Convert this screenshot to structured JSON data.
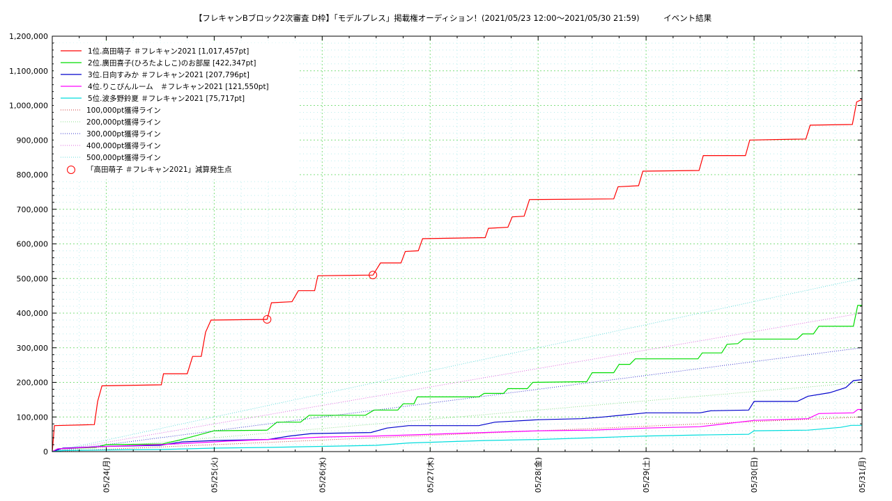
{
  "chart_data": {
    "type": "line",
    "title": "【フレキャンBブロック2次審査 D枠】「モデルプレス」掲載権オーディション！(2021/05/23 12:00〜2021/05/30 21:59)　　　イベント結果",
    "xlabel": "",
    "ylabel": "",
    "x_start_label": "2021/05/23 12:00",
    "x_end_label": "2021/05/31 00:00",
    "xlim_days": [
      0,
      7.5
    ],
    "ylim": [
      0,
      1200000
    ],
    "y_ticks": [
      0,
      100000,
      200000,
      300000,
      400000,
      500000,
      600000,
      700000,
      800000,
      900000,
      1000000,
      1100000,
      1200000
    ],
    "y_tick_labels": [
      "0",
      "100,000",
      "200,000",
      "300,000",
      "400,000",
      "500,000",
      "600,000",
      "700,000",
      "800,000",
      "900,000",
      "1,000,000",
      "1,100,000",
      "1,200,000"
    ],
    "x_ticks": [
      {
        "t": 0.5,
        "label": "05/24(月)"
      },
      {
        "t": 1.5,
        "label": "05/25(火)"
      },
      {
        "t": 2.5,
        "label": "05/26(水)"
      },
      {
        "t": 3.5,
        "label": "05/27(木)"
      },
      {
        "t": 4.5,
        "label": "05/28(金)"
      },
      {
        "t": 5.5,
        "label": "05/29(土)"
      },
      {
        "t": 6.5,
        "label": "05/30(日)"
      },
      {
        "t": 7.5,
        "label": "05/31(月)"
      }
    ],
    "grid": true,
    "legend_position": "top-left",
    "series": [
      {
        "name": "1位.高田萌子 ＃フレキャン2021 [1,017,457pt]",
        "color": "#ff0000",
        "points": [
          [
            0,
            0
          ],
          [
            0.02,
            75000
          ],
          [
            0.39,
            78000
          ],
          [
            0.42,
            145000
          ],
          [
            0.46,
            190000
          ],
          [
            1.01,
            193000
          ],
          [
            1.03,
            225000
          ],
          [
            1.25,
            225000
          ],
          [
            1.3,
            275000
          ],
          [
            1.38,
            275000
          ],
          [
            1.42,
            345000
          ],
          [
            1.47,
            380000
          ],
          [
            1.99,
            382000
          ],
          [
            2.03,
            430000
          ],
          [
            2.22,
            433000
          ],
          [
            2.28,
            465000
          ],
          [
            2.43,
            465000
          ],
          [
            2.46,
            508000
          ],
          [
            2.97,
            510000
          ],
          [
            3.04,
            545000
          ],
          [
            3.23,
            545000
          ],
          [
            3.27,
            578000
          ],
          [
            3.39,
            580000
          ],
          [
            3.43,
            615000
          ],
          [
            4.01,
            618000
          ],
          [
            4.04,
            645000
          ],
          [
            4.22,
            648000
          ],
          [
            4.26,
            678000
          ],
          [
            4.37,
            680000
          ],
          [
            4.42,
            728000
          ],
          [
            5.2,
            730000
          ],
          [
            5.24,
            765000
          ],
          [
            5.43,
            768000
          ],
          [
            5.47,
            810000
          ],
          [
            5.99,
            812000
          ],
          [
            6.03,
            855000
          ],
          [
            6.42,
            855000
          ],
          [
            6.46,
            900000
          ],
          [
            6.98,
            903000
          ],
          [
            7.02,
            943000
          ],
          [
            7.41,
            945000
          ],
          [
            7.45,
            1010000
          ],
          [
            7.5,
            1017457
          ]
        ]
      },
      {
        "name": "2位.廣田喜子(ひろたよしこ)のお部屋 [422,347pt]",
        "color": "#00dd00",
        "points": [
          [
            0,
            0
          ],
          [
            0.05,
            8000
          ],
          [
            0.4,
            12000
          ],
          [
            0.5,
            20000
          ],
          [
            1.02,
            22000
          ],
          [
            1.2,
            35000
          ],
          [
            1.5,
            60000
          ],
          [
            1.99,
            62000
          ],
          [
            2.08,
            85000
          ],
          [
            2.3,
            85000
          ],
          [
            2.38,
            105000
          ],
          [
            2.9,
            105000
          ],
          [
            2.98,
            120000
          ],
          [
            3.2,
            120000
          ],
          [
            3.25,
            138000
          ],
          [
            3.35,
            138000
          ],
          [
            3.38,
            158000
          ],
          [
            3.95,
            158000
          ],
          [
            4.0,
            168000
          ],
          [
            4.18,
            168000
          ],
          [
            4.22,
            182000
          ],
          [
            4.4,
            182000
          ],
          [
            4.45,
            200000
          ],
          [
            4.95,
            202000
          ],
          [
            5.0,
            228000
          ],
          [
            5.2,
            228000
          ],
          [
            5.25,
            252000
          ],
          [
            5.35,
            252000
          ],
          [
            5.4,
            268000
          ],
          [
            5.98,
            268000
          ],
          [
            6.02,
            285000
          ],
          [
            6.2,
            285000
          ],
          [
            6.25,
            310000
          ],
          [
            6.35,
            312000
          ],
          [
            6.4,
            325000
          ],
          [
            6.9,
            325000
          ],
          [
            6.95,
            340000
          ],
          [
            7.05,
            340000
          ],
          [
            7.1,
            362000
          ],
          [
            7.42,
            362000
          ],
          [
            7.46,
            422347
          ],
          [
            7.5,
            422347
          ]
        ]
      },
      {
        "name": "3位.日向すみか ＃フレキャン2021 [207,796pt]",
        "color": "#0000cc",
        "points": [
          [
            0,
            0
          ],
          [
            0.1,
            10000
          ],
          [
            0.5,
            15000
          ],
          [
            1.0,
            18000
          ],
          [
            1.2,
            28000
          ],
          [
            1.5,
            32000
          ],
          [
            2.0,
            35000
          ],
          [
            2.2,
            45000
          ],
          [
            2.4,
            52000
          ],
          [
            2.95,
            55000
          ],
          [
            3.1,
            68000
          ],
          [
            3.3,
            75000
          ],
          [
            3.95,
            75000
          ],
          [
            4.1,
            85000
          ],
          [
            4.5,
            92000
          ],
          [
            4.9,
            95000
          ],
          [
            5.1,
            100000
          ],
          [
            5.5,
            112000
          ],
          [
            6.0,
            112000
          ],
          [
            6.1,
            118000
          ],
          [
            6.45,
            120000
          ],
          [
            6.5,
            145000
          ],
          [
            6.9,
            145000
          ],
          [
            7.0,
            160000
          ],
          [
            7.2,
            170000
          ],
          [
            7.35,
            185000
          ],
          [
            7.42,
            205000
          ],
          [
            7.5,
            207796
          ]
        ]
      },
      {
        "name": "4位.りこぴんルーム　＃フレキャン2021 [121,550pt]",
        "color": "#ff00ff",
        "points": [
          [
            0,
            0
          ],
          [
            0.05,
            8000
          ],
          [
            0.5,
            15000
          ],
          [
            1.0,
            20000
          ],
          [
            1.5,
            28000
          ],
          [
            1.6,
            30000
          ],
          [
            2.0,
            35000
          ],
          [
            2.5,
            42000
          ],
          [
            3.0,
            45000
          ],
          [
            3.5,
            50000
          ],
          [
            4.0,
            55000
          ],
          [
            4.5,
            60000
          ],
          [
            5.0,
            62000
          ],
          [
            5.5,
            68000
          ],
          [
            6.0,
            72000
          ],
          [
            6.5,
            90000
          ],
          [
            7.0,
            95000
          ],
          [
            7.1,
            110000
          ],
          [
            7.42,
            112000
          ],
          [
            7.46,
            121550
          ],
          [
            7.5,
            121550
          ]
        ]
      },
      {
        "name": "5位.波多野鈴夏 ＃フレキャン2021 [75,717pt]",
        "color": "#00dddd",
        "points": [
          [
            0,
            0
          ],
          [
            0.1,
            3000
          ],
          [
            0.6,
            5000
          ],
          [
            1.0,
            6000
          ],
          [
            1.5,
            10000
          ],
          [
            2.0,
            12000
          ],
          [
            2.5,
            15000
          ],
          [
            3.0,
            18000
          ],
          [
            3.3,
            25000
          ],
          [
            3.6,
            28000
          ],
          [
            4.0,
            32000
          ],
          [
            4.5,
            35000
          ],
          [
            5.0,
            40000
          ],
          [
            5.5,
            45000
          ],
          [
            6.0,
            48000
          ],
          [
            6.45,
            50000
          ],
          [
            6.5,
            60000
          ],
          [
            7.0,
            62000
          ],
          [
            7.3,
            70000
          ],
          [
            7.4,
            75717
          ],
          [
            7.5,
            75717
          ]
        ]
      }
    ],
    "reference_lines": [
      {
        "name": "100,000pt獲得ライン",
        "value": 100000,
        "color": "#cc3333"
      },
      {
        "name": "200,000pt獲得ライン",
        "value": 200000,
        "color": "#88dd88"
      },
      {
        "name": "300,000pt獲得ライン",
        "value": 300000,
        "color": "#3333cc"
      },
      {
        "name": "400,000pt獲得ライン",
        "value": 400000,
        "color": "#dd66dd"
      },
      {
        "name": "500,000pt獲得ライン",
        "value": 500000,
        "color": "#66dddd"
      }
    ],
    "markers": {
      "name": "「高田萌子 ＃フレキャン2021」減算発生点",
      "color": "#ff0000",
      "points": [
        [
          1.99,
          382000
        ],
        [
          2.97,
          510000
        ]
      ]
    }
  }
}
